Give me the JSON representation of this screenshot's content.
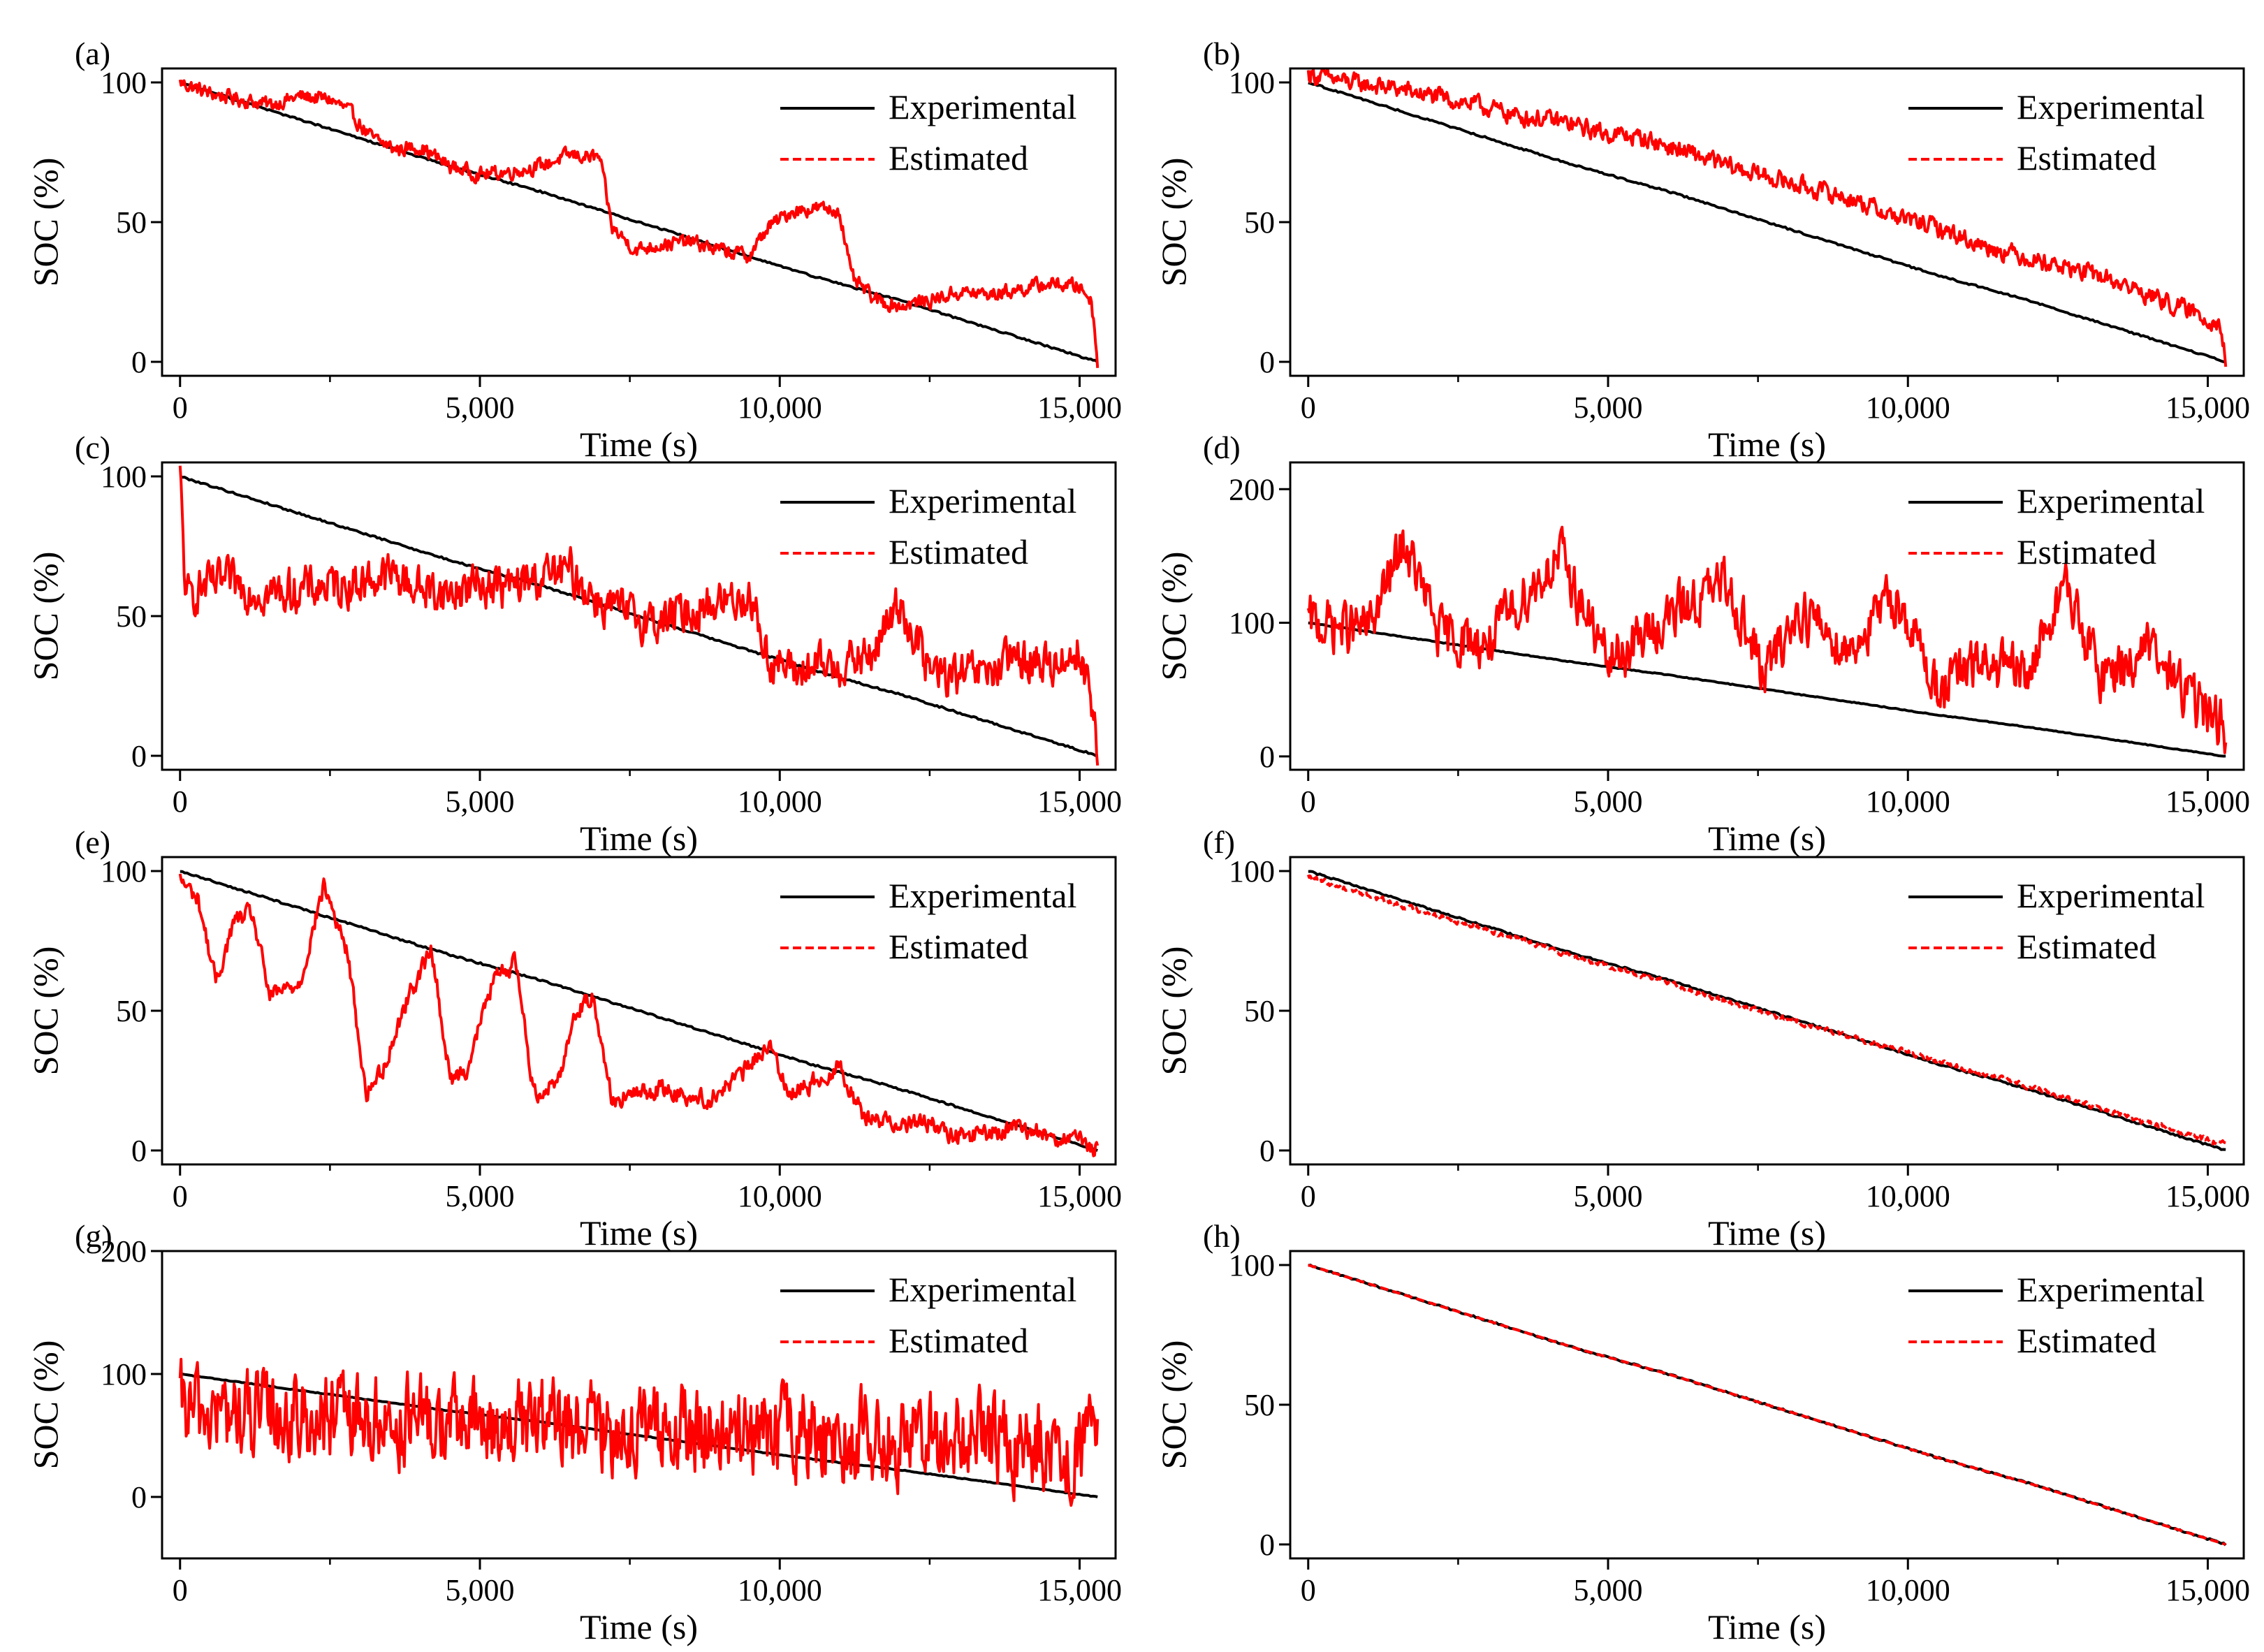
{
  "figure": {
    "legend_entries": [
      "Experimental",
      "Estimated"
    ],
    "x_axis_label": "Time (s)",
    "y_axis_label": "SOC (%)"
  },
  "colors": {
    "experimental": "#000000",
    "estimated": "#ff0000",
    "axes": "#000000"
  },
  "chart_data": [
    {
      "panel": "(a)",
      "type": "line",
      "xlabel": "Time (s)",
      "ylabel": "SOC (%)",
      "xlim": [
        -300,
        15600
      ],
      "ylim": [
        -5,
        105
      ],
      "xticks": [
        0,
        5000,
        10000,
        15000
      ],
      "xtick_labels": [
        "0",
        "5,000",
        "10,000",
        "15,000"
      ],
      "yticks": [
        0,
        50,
        100
      ],
      "ytick_labels": [
        "0",
        "50",
        "100"
      ],
      "legend": "top-right",
      "series": [
        {
          "name": "Experimental",
          "style": "solid",
          "x": [
            0,
            1500,
            3000,
            4500,
            6000,
            7500,
            9000,
            10500,
            12000,
            13500,
            15300
          ],
          "y": [
            100,
            90,
            80,
            70,
            61,
            51,
            41,
            31,
            22,
            12,
            0
          ]
        },
        {
          "name": "Estimated",
          "style": "dashed",
          "noise": 4,
          "x": [
            0,
            500,
            1000,
            1500,
            2000,
            2500,
            2800,
            3200,
            3600,
            4000,
            4500,
            5000,
            5500,
            6000,
            6500,
            7000,
            7200,
            7600,
            8000,
            8500,
            9000,
            9500,
            9800,
            10200,
            10600,
            11000,
            11200,
            11600,
            12000,
            12500,
            13000,
            13500,
            14000,
            14500,
            15000,
            15200,
            15300
          ],
          "y": [
            100,
            96,
            94,
            92,
            95,
            94,
            90,
            80,
            76,
            77,
            70,
            67,
            68,
            70,
            74,
            73,
            48,
            40,
            42,
            43,
            40,
            38,
            48,
            54,
            55,
            54,
            30,
            22,
            20,
            22,
            25,
            24,
            26,
            28,
            27,
            22,
            0
          ]
        }
      ]
    },
    {
      "panel": "(b)",
      "type": "line",
      "xlabel": "Time (s)",
      "ylabel": "SOC (%)",
      "xlim": [
        -300,
        15600
      ],
      "ylim": [
        -5,
        105
      ],
      "xticks": [
        0,
        5000,
        10000,
        15000
      ],
      "xtick_labels": [
        "0",
        "5,000",
        "10,000",
        "15,000"
      ],
      "yticks": [
        0,
        50,
        100
      ],
      "ytick_labels": [
        "0",
        "50",
        "100"
      ],
      "legend": "top-right",
      "series": [
        {
          "name": "Experimental",
          "style": "solid",
          "x": [
            0,
            1500,
            3000,
            4500,
            6000,
            7500,
            9000,
            10500,
            12000,
            13500,
            15300
          ],
          "y": [
            100,
            90,
            80,
            70,
            61,
            51,
            41,
            31,
            22,
            12,
            0
          ]
        },
        {
          "name": "Estimated",
          "style": "dashed",
          "noise": 5,
          "x": [
            0,
            700,
            1400,
            2100,
            2800,
            3500,
            4200,
            4900,
            5600,
            6300,
            7000,
            7700,
            8400,
            9100,
            9800,
            10500,
            11200,
            11900,
            12600,
            13300,
            14000,
            14700,
            15200,
            15300
          ],
          "y": [
            103,
            100,
            98,
            95,
            92,
            88,
            86,
            82,
            80,
            75,
            70,
            66,
            62,
            58,
            52,
            48,
            42,
            38,
            34,
            30,
            24,
            18,
            14,
            0
          ]
        }
      ]
    },
    {
      "panel": "(c)",
      "type": "line",
      "xlabel": "Time (s)",
      "ylabel": "SOC (%)",
      "xlim": [
        -300,
        15600
      ],
      "ylim": [
        -5,
        105
      ],
      "xticks": [
        0,
        5000,
        10000,
        15000
      ],
      "xtick_labels": [
        "0",
        "5,000",
        "10,000",
        "15,000"
      ],
      "yticks": [
        0,
        50,
        100
      ],
      "ytick_labels": [
        "0",
        "50",
        "100"
      ],
      "legend": "top-right",
      "series": [
        {
          "name": "Experimental",
          "style": "solid",
          "x": [
            0,
            1500,
            3000,
            4500,
            6000,
            7500,
            9000,
            10500,
            12000,
            13500,
            15300
          ],
          "y": [
            100,
            90,
            80,
            70,
            61,
            51,
            41,
            31,
            22,
            12,
            0
          ]
        },
        {
          "name": "Estimated",
          "style": "dashed",
          "noise": 12,
          "x": [
            0,
            100,
            300,
            800,
            1500,
            2200,
            3000,
            3500,
            4000,
            4500,
            5000,
            5500,
            6000,
            6500,
            7000,
            7500,
            8000,
            8500,
            9000,
            9500,
            9800,
            10200,
            10800,
            11500,
            12000,
            12500,
            13000,
            13500,
            14000,
            14500,
            15000,
            15200,
            15300
          ],
          "y": [
            100,
            55,
            60,
            62,
            58,
            60,
            62,
            65,
            60,
            58,
            62,
            60,
            64,
            66,
            55,
            50,
            48,
            52,
            55,
            58,
            35,
            30,
            32,
            35,
            55,
            30,
            28,
            30,
            35,
            32,
            38,
            20,
            0
          ]
        }
      ]
    },
    {
      "panel": "(d)",
      "type": "line",
      "xlabel": "Time (s)",
      "ylabel": "SOC (%)",
      "xlim": [
        -300,
        15600
      ],
      "ylim": [
        -10,
        220
      ],
      "xticks": [
        0,
        5000,
        10000,
        15000
      ],
      "xtick_labels": [
        "0",
        "5,000",
        "10,000",
        "15,000"
      ],
      "yticks": [
        0,
        100,
        200
      ],
      "ytick_labels": [
        "0",
        "100",
        "200"
      ],
      "legend": "top-right",
      "series": [
        {
          "name": "Experimental",
          "style": "solid",
          "x": [
            0,
            1500,
            3000,
            4500,
            6000,
            7500,
            9000,
            10500,
            12000,
            13500,
            15300
          ],
          "y": [
            100,
            90,
            80,
            70,
            61,
            51,
            41,
            31,
            22,
            12,
            0
          ]
        },
        {
          "name": "Estimated",
          "style": "dashed",
          "noise": 30,
          "x": [
            0,
            1000,
            1600,
            2200,
            3000,
            3600,
            4200,
            5000,
            5600,
            6200,
            7000,
            7600,
            8200,
            9000,
            9800,
            10500,
            11200,
            12000,
            12600,
            13200,
            14000,
            14600,
            15300
          ],
          "y": [
            100,
            95,
            160,
            90,
            85,
            120,
            150,
            70,
            90,
            110,
            130,
            60,
            110,
            80,
            120,
            50,
            70,
            60,
            130,
            60,
            80,
            50,
            20
          ]
        }
      ]
    },
    {
      "panel": "(e)",
      "type": "line",
      "xlabel": "Time (s)",
      "ylabel": "SOC (%)",
      "xlim": [
        -300,
        15600
      ],
      "ylim": [
        -5,
        105
      ],
      "xticks": [
        0,
        5000,
        10000,
        15000
      ],
      "xtick_labels": [
        "0",
        "5,000",
        "10,000",
        "15,000"
      ],
      "yticks": [
        0,
        50,
        100
      ],
      "ytick_labels": [
        "0",
        "50",
        "100"
      ],
      "legend": "top-right",
      "series": [
        {
          "name": "Experimental",
          "style": "solid",
          "x": [
            0,
            1500,
            3000,
            4500,
            6000,
            7500,
            9000,
            10500,
            12000,
            13500,
            15300
          ],
          "y": [
            100,
            90,
            80,
            70,
            61,
            51,
            41,
            31,
            22,
            12,
            0
          ]
        },
        {
          "name": "Estimated",
          "style": "dashed",
          "noise": 5,
          "x": [
            0,
            300,
            600,
            900,
            1200,
            1500,
            2000,
            2400,
            2800,
            3100,
            3400,
            3800,
            4200,
            4500,
            4800,
            5200,
            5600,
            5900,
            6300,
            6600,
            6900,
            7200,
            8000,
            8800,
            9400,
            9800,
            10200,
            10600,
            11000,
            11400,
            12000,
            12500,
            12800,
            13500,
            14000,
            15000,
            15300
          ],
          "y": [
            97,
            90,
            60,
            82,
            85,
            55,
            60,
            95,
            70,
            20,
            30,
            55,
            72,
            25,
            30,
            60,
            68,
            20,
            25,
            50,
            55,
            18,
            22,
            18,
            28,
            38,
            20,
            25,
            30,
            12,
            10,
            10,
            5,
            6,
            8,
            3,
            0
          ]
        }
      ]
    },
    {
      "panel": "(f)",
      "type": "line",
      "xlabel": "Time (s)",
      "ylabel": "SOC (%)",
      "xlim": [
        -300,
        15600
      ],
      "ylim": [
        -5,
        105
      ],
      "xticks": [
        0,
        5000,
        10000,
        15000
      ],
      "xtick_labels": [
        "0",
        "5,000",
        "10,000",
        "15,000"
      ],
      "yticks": [
        0,
        50,
        100
      ],
      "ytick_labels": [
        "0",
        "50",
        "100"
      ],
      "legend": "top-right",
      "series": [
        {
          "name": "Experimental",
          "style": "solid",
          "x": [
            0,
            1500,
            3000,
            4500,
            6000,
            7500,
            9000,
            10500,
            12000,
            13500,
            15300
          ],
          "y": [
            100,
            90,
            80,
            70,
            61,
            51,
            41,
            31,
            22,
            12,
            0
          ]
        },
        {
          "name": "Estimated",
          "style": "dashed",
          "noise": 1.5,
          "x": [
            0,
            1500,
            3000,
            4500,
            6000,
            7500,
            9000,
            10500,
            12000,
            13500,
            15300
          ],
          "y": [
            98,
            88,
            79,
            69,
            60,
            50,
            41,
            32,
            23,
            13,
            2
          ]
        }
      ]
    },
    {
      "panel": "(g)",
      "type": "line",
      "xlabel": "Time (s)",
      "ylabel": "SOC (%)",
      "xlim": [
        -300,
        15600
      ],
      "ylim": [
        -50,
        200
      ],
      "xticks": [
        0,
        5000,
        10000,
        15000
      ],
      "xtick_labels": [
        "0",
        "5,000",
        "10,000",
        "15,000"
      ],
      "yticks": [
        0,
        100,
        200
      ],
      "ytick_labels": [
        "0",
        "100",
        "200"
      ],
      "legend": "top-right",
      "series": [
        {
          "name": "Experimental",
          "style": "solid",
          "x": [
            0,
            1500,
            3000,
            4500,
            6000,
            7500,
            9000,
            10500,
            12000,
            13500,
            15300
          ],
          "y": [
            100,
            90,
            80,
            70,
            61,
            51,
            41,
            31,
            22,
            12,
            0
          ]
        },
        {
          "name": "Estimated",
          "style": "dashed",
          "noise": 55,
          "x": [
            0,
            1500,
            3000,
            4500,
            6000,
            7500,
            9000,
            10500,
            12000,
            13500,
            15300
          ],
          "y": [
            70,
            65,
            62,
            60,
            58,
            55,
            52,
            50,
            48,
            45,
            40
          ]
        }
      ]
    },
    {
      "panel": "(h)",
      "type": "line",
      "xlabel": "Time (s)",
      "ylabel": "SOC (%)",
      "xlim": [
        -300,
        15600
      ],
      "ylim": [
        -5,
        105
      ],
      "xticks": [
        0,
        5000,
        10000,
        15000
      ],
      "xtick_labels": [
        "0",
        "5,000",
        "10,000",
        "15,000"
      ],
      "yticks": [
        0,
        50,
        100
      ],
      "ytick_labels": [
        "0",
        "50",
        "100"
      ],
      "legend": "top-right",
      "series": [
        {
          "name": "Experimental",
          "style": "solid",
          "x": [
            0,
            1500,
            3000,
            4500,
            6000,
            7500,
            9000,
            10500,
            12000,
            13500,
            15300
          ],
          "y": [
            100,
            90,
            80,
            70,
            61,
            51,
            41,
            31,
            22,
            12,
            0
          ]
        },
        {
          "name": "Estimated",
          "style": "dashed",
          "noise": 0,
          "x": [
            0,
            1500,
            3000,
            4500,
            6000,
            7500,
            9000,
            10500,
            12000,
            13500,
            15300
          ],
          "y": [
            100,
            90,
            80,
            70,
            61,
            51,
            41,
            31,
            22,
            12,
            0
          ]
        }
      ]
    }
  ]
}
